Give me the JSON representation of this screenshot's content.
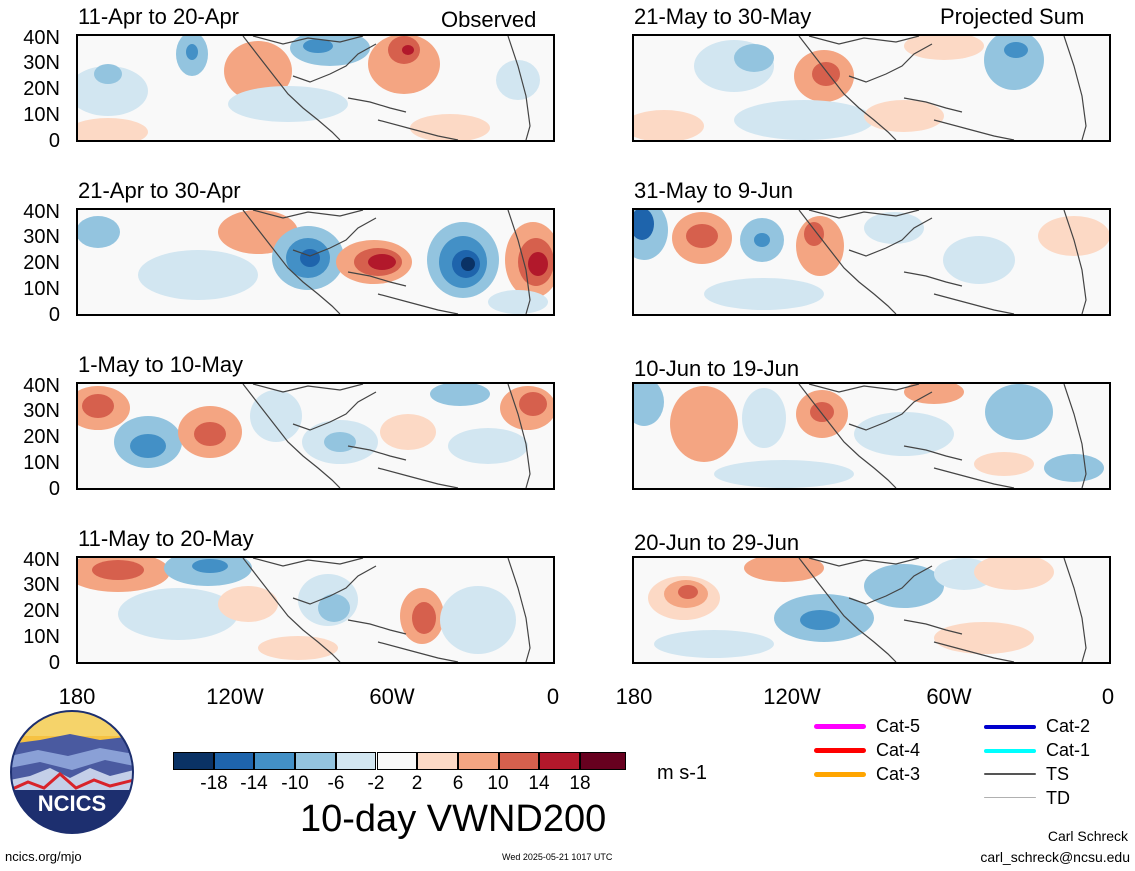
{
  "header": {
    "left_tag": "Observed",
    "right_tag": "Projected Sum"
  },
  "colors": {
    "neg": [
      "#0a3265",
      "#1e64ac",
      "#4390c6",
      "#93c4df",
      "#d2e6f1"
    ],
    "neutral": "#f9f9f9",
    "pos": [
      "#fcd9c5",
      "#f4a582",
      "#d6604d",
      "#b2182b",
      "#67001f"
    ]
  },
  "panels": {
    "left": [
      {
        "title": "11-Apr to 20-Apr"
      },
      {
        "title": "21-Apr to 30-Apr"
      },
      {
        "title": "1-May to 10-May"
      },
      {
        "title": "11-May to 20-May"
      }
    ],
    "right": [
      {
        "title": "21-May to 30-May"
      },
      {
        "title": "31-May to 9-Jun"
      },
      {
        "title": "10-Jun to 19-Jun"
      },
      {
        "title": "20-Jun to 29-Jun"
      }
    ]
  },
  "axes": {
    "lat_labels": [
      "40N",
      "30N",
      "20N",
      "10N",
      "0"
    ],
    "lon_labels": [
      "180",
      "120W",
      "60W",
      "0"
    ]
  },
  "colorbar": {
    "labels": [
      "-18",
      "-14",
      "-10",
      "-6",
      "-2",
      "2",
      "6",
      "10",
      "14",
      "18"
    ],
    "unit": "m s-1",
    "title": "10-day VWND200"
  },
  "legend": {
    "items": [
      {
        "label": "Cat-5",
        "color": "#ff00ff"
      },
      {
        "label": "Cat-4",
        "color": "#ff0000"
      },
      {
        "label": "Cat-3",
        "color": "#ffa500"
      },
      {
        "label": "Cat-2",
        "color": "#0000cd"
      },
      {
        "label": "Cat-1",
        "color": "#00ffff"
      },
      {
        "label": "TS",
        "color": "#555555"
      },
      {
        "label": "TD",
        "color": "#b0b0b0"
      }
    ]
  },
  "logo": {
    "text": "NCICS"
  },
  "footer": {
    "url": "ncics.org/mjo",
    "timestamp": "Wed 2025-05-21 1017 UTC",
    "author": "Carl Schreck",
    "email": "carl_schreck@ncsu.edu"
  }
}
